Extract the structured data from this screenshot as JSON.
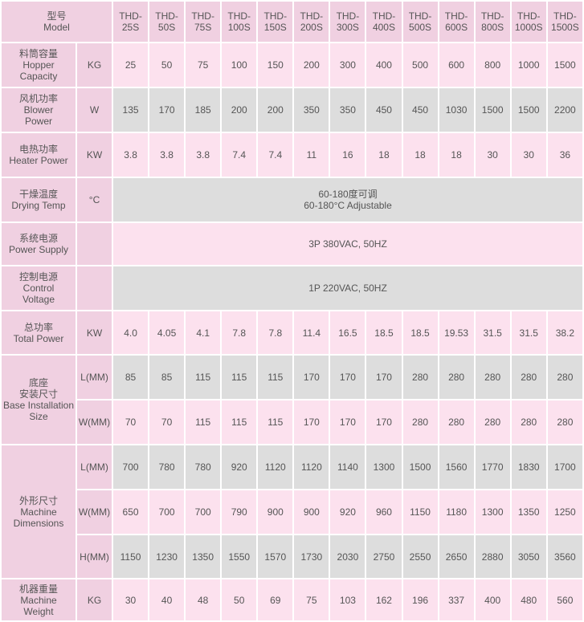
{
  "theme": {
    "label_bg": "#f0d0e1",
    "pink_bg": "#fce1ee",
    "grey_bg": "#dddddd",
    "text": "#555555"
  },
  "header": {
    "label": [
      "型号",
      "Model"
    ],
    "models": [
      "THD-25S",
      "THD-50S",
      "THD-75S",
      "THD-100S",
      "THD-150S",
      "THD-200S",
      "THD-300S",
      "THD-400S",
      "THD-500S",
      "THD-600S",
      "THD-800S",
      "THD-1000S",
      "THD-1500S"
    ]
  },
  "rows": [
    {
      "label": [
        "料筒容量",
        "Hopper",
        "Capacity"
      ],
      "sub": [
        {
          "unit": "KG",
          "values": [
            "25",
            "50",
            "75",
            "100",
            "150",
            "200",
            "300",
            "400",
            "500",
            "600",
            "800",
            "1000",
            "1500"
          ]
        }
      ]
    },
    {
      "label": [
        "风机功率",
        "Blower",
        "Power"
      ],
      "sub": [
        {
          "unit": "W",
          "values": [
            "135",
            "170",
            "185",
            "200",
            "200",
            "350",
            "350",
            "450",
            "450",
            "1030",
            "1500",
            "1500",
            "2200"
          ]
        }
      ]
    },
    {
      "label": [
        "电热功率",
        "Heater Power"
      ],
      "sub": [
        {
          "unit": "KW",
          "values": [
            "3.8",
            "3.8",
            "3.8",
            "7.4",
            "7.4",
            "11",
            "16",
            "18",
            "18",
            "18",
            "30",
            "30",
            "36"
          ]
        }
      ]
    },
    {
      "label": [
        "干燥温度",
        "Drying Temp"
      ],
      "sub": [
        {
          "unit": "°C",
          "span": [
            "60-180度可调",
            "60-180°C Adjustable"
          ]
        }
      ]
    },
    {
      "label": [
        "系统电源",
        "Power Supply"
      ],
      "sub": [
        {
          "unit": "",
          "span": [
            "3P 380VAC, 50HZ"
          ]
        }
      ]
    },
    {
      "label": [
        "控制电源",
        "Control",
        "Voltage"
      ],
      "sub": [
        {
          "unit": "",
          "span": [
            "1P 220VAC, 50HZ"
          ]
        }
      ]
    },
    {
      "label": [
        "总功率",
        "Total Power"
      ],
      "sub": [
        {
          "unit": "KW",
          "values": [
            "4.0",
            "4.05",
            "4.1",
            "7.8",
            "7.8",
            "11.4",
            "16.5",
            "18.5",
            "18.5",
            "19.53",
            "31.5",
            "31.5",
            "38.2"
          ]
        }
      ]
    },
    {
      "label": [
        "底座",
        "安装尺寸",
        "Base Installation",
        "Size"
      ],
      "sub": [
        {
          "unit": "L(MM)",
          "values": [
            "85",
            "85",
            "115",
            "115",
            "115",
            "170",
            "170",
            "170",
            "280",
            "280",
            "280",
            "280",
            "280"
          ]
        },
        {
          "unit": "W(MM)",
          "values": [
            "70",
            "70",
            "115",
            "115",
            "115",
            "170",
            "170",
            "170",
            "280",
            "280",
            "280",
            "280",
            "280"
          ]
        }
      ]
    },
    {
      "label": [
        "外形尺寸",
        "Machine",
        "Dimensions"
      ],
      "sub": [
        {
          "unit": "L(MM)",
          "values": [
            "700",
            "780",
            "780",
            "920",
            "1120",
            "1120",
            "1140",
            "1300",
            "1500",
            "1560",
            "1770",
            "1830",
            "1700"
          ]
        },
        {
          "unit": "W(MM)",
          "values": [
            "650",
            "700",
            "700",
            "790",
            "900",
            "900",
            "920",
            "960",
            "1150",
            "1180",
            "1300",
            "1350",
            "1250"
          ]
        },
        {
          "unit": "H(MM)",
          "values": [
            "1150",
            "1230",
            "1350",
            "1550",
            "1570",
            "1730",
            "2030",
            "2750",
            "2550",
            "2650",
            "2880",
            "3050",
            "3560"
          ]
        }
      ]
    },
    {
      "label": [
        "机器重量",
        "Machine",
        "Weight"
      ],
      "sub": [
        {
          "unit": "KG",
          "values": [
            "30",
            "40",
            "48",
            "50",
            "69",
            "75",
            "103",
            "162",
            "196",
            "337",
            "400",
            "480",
            "560"
          ]
        }
      ]
    }
  ]
}
